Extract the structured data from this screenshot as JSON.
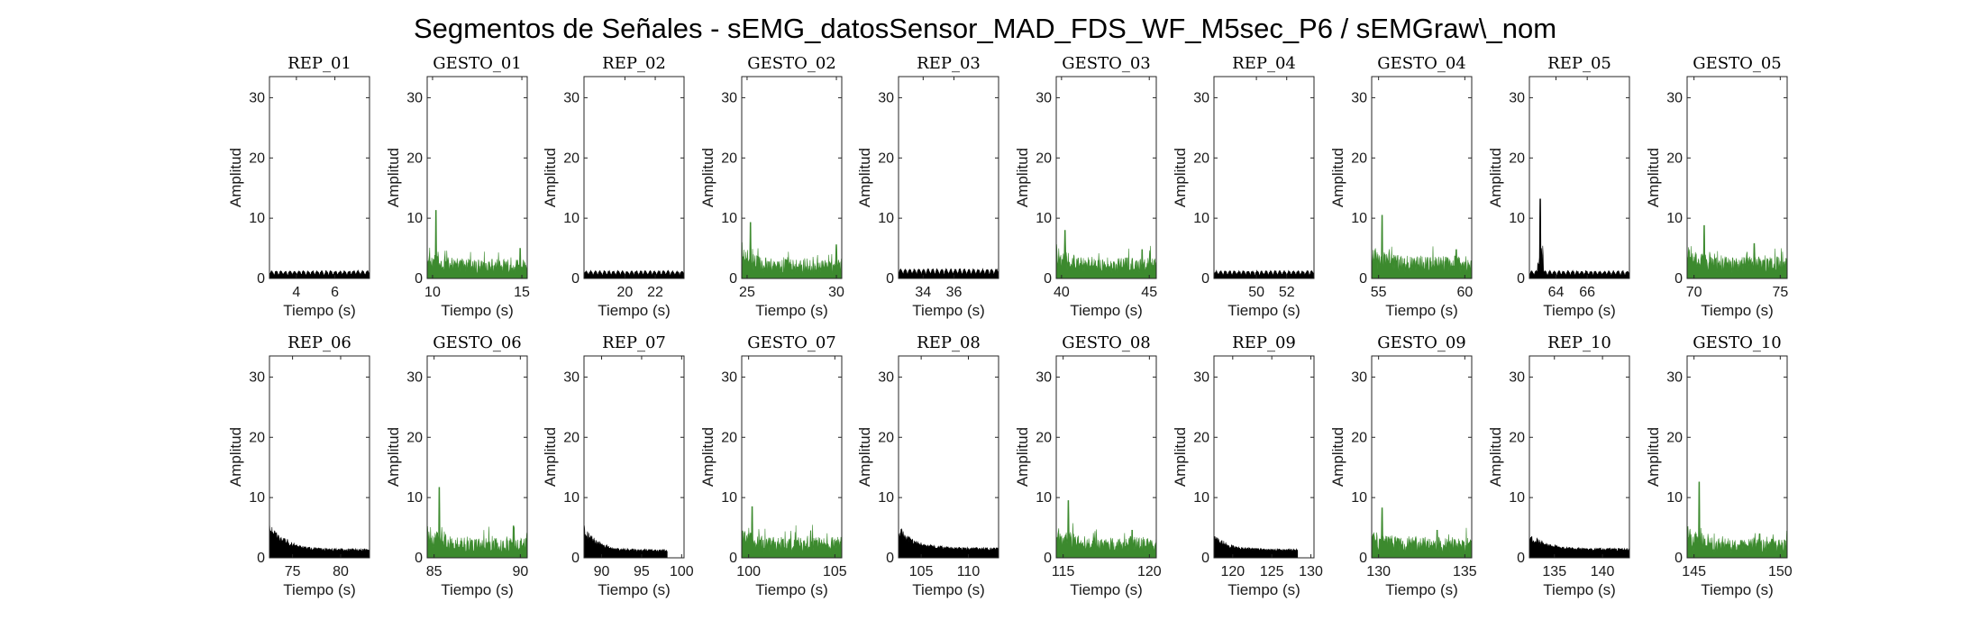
{
  "figure": {
    "title": "Segmentos de Señales - sEMG_datosSensor_MAD_FDS_WF_M5sec_P6 / sEMGraw\\_nom"
  },
  "chart_data": [
    {
      "type": "area",
      "title": "REP_01",
      "xlabel": "Tiempo (s)",
      "ylabel": "Amplitud",
      "xlim": [
        2.6,
        7.8
      ],
      "ylim": [
        0,
        33.5
      ],
      "xticks": [
        4,
        6
      ],
      "yticks": [
        0,
        10,
        20,
        30
      ],
      "color": "#000000",
      "profile": {
        "kind": "rest",
        "x": [
          2.6,
          7.8
        ],
        "level": 1.1
      }
    },
    {
      "type": "area",
      "title": "GESTO_01",
      "xlabel": "Tiempo (s)",
      "ylabel": "Amplitud",
      "xlim": [
        9.7,
        15.3
      ],
      "ylim": [
        0,
        33.5
      ],
      "xticks": [
        10,
        15
      ],
      "yticks": [
        0,
        10,
        20,
        30
      ],
      "color": "#3c8a2e",
      "profile": {
        "kind": "gesture",
        "x": [
          9.7,
          15.3
        ],
        "level": 2.2,
        "peaks": [
          [
            10.2,
            11.3
          ],
          [
            14.9,
            5.0
          ]
        ]
      }
    },
    {
      "type": "area",
      "title": "REP_02",
      "xlabel": "Tiempo (s)",
      "ylabel": "Amplitud",
      "xlim": [
        17.3,
        23.9
      ],
      "ylim": [
        0,
        33.5
      ],
      "xticks": [
        20,
        22
      ],
      "yticks": [
        0,
        10,
        20,
        30
      ],
      "color": "#000000",
      "profile": {
        "kind": "rest",
        "x": [
          17.3,
          23.9
        ],
        "level": 1.1
      }
    },
    {
      "type": "area",
      "title": "GESTO_02",
      "xlabel": "Tiempo (s)",
      "ylabel": "Amplitud",
      "xlim": [
        24.7,
        30.3
      ],
      "ylim": [
        0,
        33.5
      ],
      "xticks": [
        25,
        30
      ],
      "yticks": [
        0,
        10,
        20,
        30
      ],
      "color": "#3c8a2e",
      "profile": {
        "kind": "gesture",
        "x": [
          24.7,
          30.3
        ],
        "level": 2.3,
        "peaks": [
          [
            25.2,
            9.3
          ],
          [
            30.0,
            5.6
          ]
        ]
      }
    },
    {
      "type": "area",
      "title": "REP_03",
      "xlabel": "Tiempo (s)",
      "ylabel": "Amplitud",
      "xlim": [
        32.4,
        38.9
      ],
      "ylim": [
        0,
        33.5
      ],
      "xticks": [
        34,
        36
      ],
      "yticks": [
        0,
        10,
        20,
        30
      ],
      "color": "#000000",
      "profile": {
        "kind": "rest",
        "x": [
          32.4,
          38.9
        ],
        "level": 1.4
      }
    },
    {
      "type": "area",
      "title": "GESTO_03",
      "xlabel": "Tiempo (s)",
      "ylabel": "Amplitud",
      "xlim": [
        39.7,
        45.4
      ],
      "ylim": [
        0,
        33.5
      ],
      "xticks": [
        40,
        45
      ],
      "yticks": [
        0,
        10,
        20,
        30
      ],
      "color": "#3c8a2e",
      "profile": {
        "kind": "gesture",
        "x": [
          39.7,
          45.4
        ],
        "level": 2.4,
        "peaks": [
          [
            40.2,
            8.0
          ],
          [
            44.6,
            4.8
          ]
        ]
      }
    },
    {
      "type": "area",
      "title": "REP_04",
      "xlabel": "Tiempo (s)",
      "ylabel": "Amplitud",
      "xlim": [
        47.2,
        53.8
      ],
      "ylim": [
        0,
        33.5
      ],
      "xticks": [
        50,
        52
      ],
      "yticks": [
        0,
        10,
        20,
        30
      ],
      "color": "#000000",
      "profile": {
        "kind": "rest",
        "x": [
          47.2,
          53.8
        ],
        "level": 1.1
      }
    },
    {
      "type": "area",
      "title": "GESTO_04",
      "xlabel": "Tiempo (s)",
      "ylabel": "Amplitud",
      "xlim": [
        54.6,
        60.4
      ],
      "ylim": [
        0,
        33.5
      ],
      "xticks": [
        55,
        60
      ],
      "yticks": [
        0,
        10,
        20,
        30
      ],
      "color": "#3c8a2e",
      "profile": {
        "kind": "gesture",
        "x": [
          54.6,
          60.4
        ],
        "level": 2.6,
        "peaks": [
          [
            55.2,
            10.5
          ],
          [
            59.5,
            4.8
          ]
        ]
      }
    },
    {
      "type": "area",
      "title": "REP_05",
      "xlabel": "Tiempo (s)",
      "ylabel": "Amplitud",
      "xlim": [
        62.3,
        68.7
      ],
      "ylim": [
        0,
        33.5
      ],
      "xticks": [
        64,
        66
      ],
      "yticks": [
        0,
        10,
        20,
        30
      ],
      "color": "#000000",
      "profile": {
        "kind": "rest",
        "x": [
          62.3,
          68.7
        ],
        "level": 1.1,
        "peaks": [
          [
            63.0,
            13.2
          ]
        ]
      }
    },
    {
      "type": "area",
      "title": "GESTO_05",
      "xlabel": "Tiempo (s)",
      "ylabel": "Amplitud",
      "xlim": [
        69.6,
        75.4
      ],
      "ylim": [
        0,
        33.5
      ],
      "xticks": [
        70,
        75
      ],
      "yticks": [
        0,
        10,
        20,
        30
      ],
      "color": "#3c8a2e",
      "profile": {
        "kind": "gesture",
        "x": [
          69.6,
          75.4
        ],
        "level": 2.5,
        "peaks": [
          [
            70.6,
            8.8
          ],
          [
            73.5,
            5.8
          ]
        ]
      }
    },
    {
      "type": "area",
      "title": "REP_06",
      "xlabel": "Tiempo (s)",
      "ylabel": "Amplitud",
      "xlim": [
        72.6,
        83.0
      ],
      "ylim": [
        0,
        33.5
      ],
      "xticks": [
        75,
        80
      ],
      "yticks": [
        0,
        10,
        20,
        30
      ],
      "color": "#000000",
      "profile": {
        "kind": "decay",
        "x": [
          72.6,
          83.0
        ],
        "level": 1.0,
        "start": 5.8
      }
    },
    {
      "type": "area",
      "title": "GESTO_06",
      "xlabel": "Tiempo (s)",
      "ylabel": "Amplitud",
      "xlim": [
        84.6,
        90.4
      ],
      "ylim": [
        0,
        33.5
      ],
      "xticks": [
        85,
        90
      ],
      "yticks": [
        0,
        10,
        20,
        30
      ],
      "color": "#3c8a2e",
      "profile": {
        "kind": "gesture",
        "x": [
          84.6,
          90.4
        ],
        "level": 2.3,
        "peaks": [
          [
            85.3,
            11.7
          ],
          [
            89.6,
            5.3
          ]
        ]
      }
    },
    {
      "type": "area",
      "title": "REP_07",
      "xlabel": "Tiempo (s)",
      "ylabel": "Amplitud",
      "xlim": [
        87.8,
        100.3
      ],
      "ylim": [
        0,
        33.5
      ],
      "xticks": [
        90,
        95,
        100
      ],
      "yticks": [
        0,
        10,
        20,
        30
      ],
      "color": "#000000",
      "profile": {
        "kind": "decay",
        "x": [
          87.8,
          98.2
        ],
        "level": 0.9,
        "start": 5.2
      }
    },
    {
      "type": "area",
      "title": "GESTO_07",
      "xlabel": "Tiempo (s)",
      "ylabel": "Amplitud",
      "xlim": [
        99.6,
        105.4
      ],
      "ylim": [
        0,
        33.5
      ],
      "xticks": [
        100,
        105
      ],
      "yticks": [
        0,
        10,
        20,
        30
      ],
      "color": "#3c8a2e",
      "profile": {
        "kind": "gesture",
        "x": [
          99.6,
          105.4
        ],
        "level": 2.4,
        "peaks": [
          [
            100.2,
            8.5
          ],
          [
            103.6,
            4.5
          ]
        ]
      }
    },
    {
      "type": "area",
      "title": "REP_08",
      "xlabel": "Tiempo (s)",
      "ylabel": "Amplitud",
      "xlim": [
        102.6,
        113.2
      ],
      "ylim": [
        0,
        33.5
      ],
      "xticks": [
        105,
        110
      ],
      "yticks": [
        0,
        10,
        20,
        30
      ],
      "color": "#000000",
      "profile": {
        "kind": "decay",
        "x": [
          102.6,
          113.2
        ],
        "level": 1.2,
        "start": 5.4
      }
    },
    {
      "type": "area",
      "title": "GESTO_08",
      "xlabel": "Tiempo (s)",
      "ylabel": "Amplitud",
      "xlim": [
        114.6,
        120.4
      ],
      "ylim": [
        0,
        33.5
      ],
      "xticks": [
        115,
        120
      ],
      "yticks": [
        0,
        10,
        20,
        30
      ],
      "color": "#3c8a2e",
      "profile": {
        "kind": "gesture",
        "x": [
          114.6,
          120.4
        ],
        "level": 2.4,
        "peaks": [
          [
            115.3,
            9.5
          ],
          [
            119.0,
            4.6
          ]
        ]
      }
    },
    {
      "type": "area",
      "title": "REP_09",
      "xlabel": "Tiempo (s)",
      "ylabel": "Amplitud",
      "xlim": [
        117.6,
        130.4
      ],
      "ylim": [
        0,
        33.5
      ],
      "xticks": [
        120,
        125,
        130
      ],
      "yticks": [
        0,
        10,
        20,
        30
      ],
      "color": "#000000",
      "profile": {
        "kind": "decay",
        "x": [
          117.6,
          128.3
        ],
        "level": 1.0,
        "start": 3.8
      }
    },
    {
      "type": "area",
      "title": "GESTO_09",
      "xlabel": "Tiempo (s)",
      "ylabel": "Amplitud",
      "xlim": [
        129.6,
        135.4
      ],
      "ylim": [
        0,
        33.5
      ],
      "xticks": [
        130,
        135
      ],
      "yticks": [
        0,
        10,
        20,
        30
      ],
      "color": "#3c8a2e",
      "profile": {
        "kind": "gesture",
        "x": [
          129.6,
          135.4
        ],
        "level": 2.4,
        "peaks": [
          [
            130.2,
            8.3
          ],
          [
            133.4,
            4.6
          ]
        ]
      }
    },
    {
      "type": "area",
      "title": "REP_10",
      "xlabel": "Tiempo (s)",
      "ylabel": "Amplitud",
      "xlim": [
        132.4,
        142.8
      ],
      "ylim": [
        0,
        33.5
      ],
      "xticks": [
        135,
        140
      ],
      "yticks": [
        0,
        10,
        20,
        30
      ],
      "color": "#000000",
      "profile": {
        "kind": "decay",
        "x": [
          132.4,
          142.8
        ],
        "level": 1.1,
        "start": 4.0
      }
    },
    {
      "type": "area",
      "title": "GESTO_10",
      "xlabel": "Tiempo (s)",
      "ylabel": "Amplitud",
      "xlim": [
        144.6,
        150.4
      ],
      "ylim": [
        0,
        33.5
      ],
      "xticks": [
        145,
        150
      ],
      "yticks": [
        0,
        10,
        20,
        30
      ],
      "color": "#3c8a2e",
      "profile": {
        "kind": "gesture",
        "x": [
          144.6,
          150.4
        ],
        "level": 2.2,
        "peaks": [
          [
            145.3,
            12.6
          ],
          [
            148.8,
            4.0
          ]
        ]
      }
    }
  ]
}
